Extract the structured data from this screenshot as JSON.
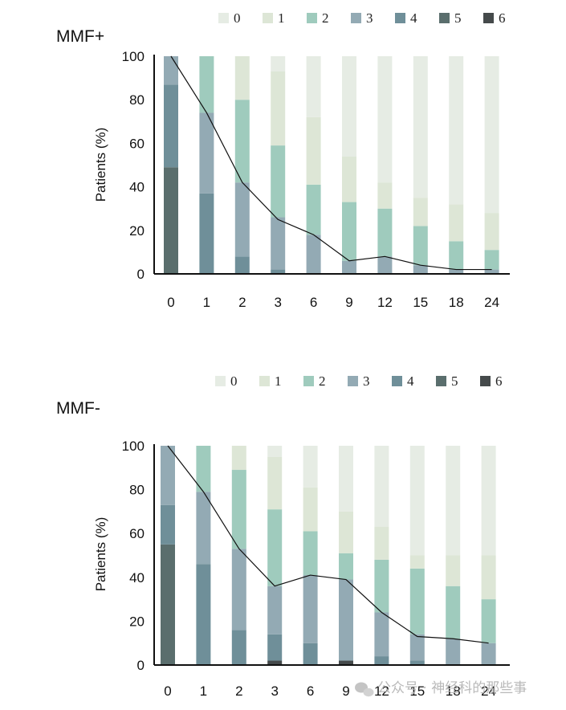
{
  "colors": {
    "0": "#e6ece4",
    "1": "#dde6d6",
    "2": "#9fcbbd",
    "3": "#93aab4",
    "4": "#6f8f99",
    "5": "#5a6e6d",
    "6": "#454a4b",
    "axis": "#111111",
    "trend_line": "#111111"
  },
  "legend": [
    "0",
    "1",
    "2",
    "3",
    "4",
    "5",
    "6"
  ],
  "watermark": "公众号 · 神经科的那些事",
  "chart_data": [
    {
      "type": "bar",
      "stacked": true,
      "title": "MMF+",
      "xlabel": "",
      "ylabel": "Patients (%)",
      "ylim": [
        0,
        100
      ],
      "yticks": [
        0,
        20,
        40,
        60,
        80,
        100
      ],
      "categories": [
        "0",
        "1",
        "2",
        "3",
        "6",
        "9",
        "12",
        "15",
        "18",
        "24"
      ],
      "series": [
        {
          "name": "6",
          "values": [
            0,
            0,
            0,
            0,
            0,
            0,
            0,
            0,
            0,
            0
          ]
        },
        {
          "name": "5",
          "values": [
            49,
            0,
            0,
            0,
            0,
            0,
            0,
            0,
            0,
            0
          ]
        },
        {
          "name": "4",
          "values": [
            38,
            37,
            8,
            2,
            0,
            0,
            0,
            0,
            0,
            0
          ]
        },
        {
          "name": "3",
          "values": [
            13,
            37,
            34,
            24,
            18,
            6,
            8,
            4,
            2,
            2
          ]
        },
        {
          "name": "2",
          "values": [
            0,
            26,
            38,
            33,
            23,
            27,
            22,
            18,
            13,
            9
          ]
        },
        {
          "name": "1",
          "values": [
            0,
            0,
            20,
            34,
            31,
            21,
            12,
            13,
            17,
            17
          ]
        },
        {
          "name": "0",
          "values": [
            0,
            0,
            0,
            7,
            28,
            46,
            58,
            65,
            68,
            72
          ]
        }
      ],
      "trend": [
        100,
        74,
        42,
        25,
        18,
        6,
        8,
        4,
        2,
        2
      ]
    },
    {
      "type": "bar",
      "stacked": true,
      "title": "MMF-",
      "xlabel": "",
      "ylabel": "Patients (%)",
      "ylim": [
        0,
        100
      ],
      "yticks": [
        0,
        20,
        40,
        60,
        80,
        100
      ],
      "categories": [
        "0",
        "1",
        "2",
        "3",
        "6",
        "9",
        "12",
        "15",
        "18",
        "24"
      ],
      "series": [
        {
          "name": "6",
          "values": [
            0,
            0,
            0,
            2,
            0,
            2,
            0,
            0,
            0,
            0
          ]
        },
        {
          "name": "5",
          "values": [
            55,
            0,
            0,
            0,
            0,
            0,
            0,
            0,
            0,
            0
          ]
        },
        {
          "name": "4",
          "values": [
            18,
            46,
            16,
            12,
            10,
            0,
            4,
            2,
            0,
            0
          ]
        },
        {
          "name": "3",
          "values": [
            27,
            33,
            37,
            22,
            31,
            37,
            20,
            12,
            12,
            10
          ]
        },
        {
          "name": "2",
          "values": [
            0,
            21,
            36,
            35,
            20,
            12,
            24,
            30,
            24,
            20
          ]
        },
        {
          "name": "1",
          "values": [
            0,
            0,
            11,
            24,
            20,
            19,
            15,
            6,
            14,
            20
          ]
        },
        {
          "name": "0",
          "values": [
            0,
            0,
            0,
            5,
            19,
            30,
            37,
            50,
            50,
            50
          ]
        }
      ],
      "trend": [
        100,
        79,
        53,
        36,
        41,
        39,
        24,
        13,
        12,
        10
      ]
    }
  ]
}
